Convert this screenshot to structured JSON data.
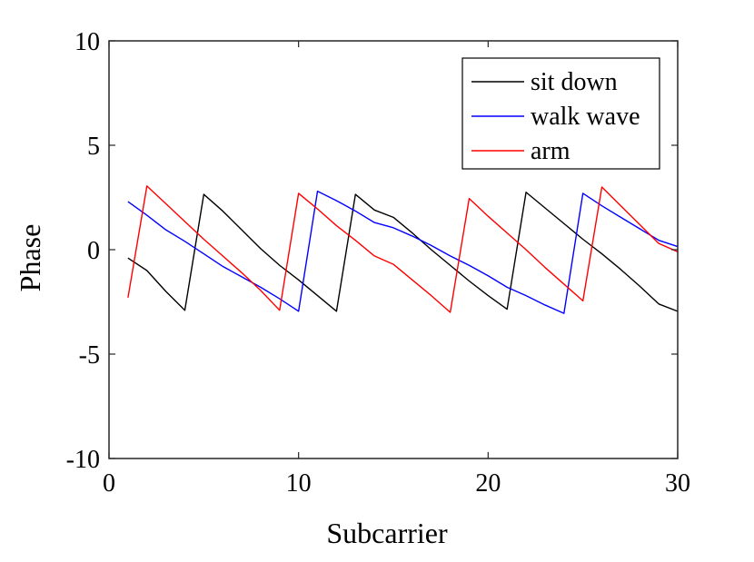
{
  "chart_data": {
    "type": "line",
    "title": "",
    "xlabel": "Subcarrier",
    "ylabel": "Phase",
    "xlim": [
      0,
      30
    ],
    "ylim": [
      -10,
      10
    ],
    "xticks": [
      0,
      10,
      20,
      30
    ],
    "yticks": [
      -10,
      -5,
      0,
      5,
      10
    ],
    "xtick_labels": [
      "0",
      "10",
      "20",
      "30"
    ],
    "ytick_labels": [
      "-10",
      "-5",
      "0",
      "5",
      "10"
    ],
    "grid": false,
    "legend_position": "top-right",
    "x": [
      1,
      2,
      3,
      4,
      5,
      6,
      7,
      8,
      9,
      10,
      11,
      12,
      13,
      14,
      15,
      16,
      17,
      18,
      19,
      20,
      21,
      22,
      23,
      24,
      25,
      26,
      27,
      28,
      29,
      30
    ],
    "series": [
      {
        "name": "sit down",
        "color": "#000000",
        "values": [
          -0.4,
          -1.0,
          -2.0,
          -2.9,
          2.65,
          1.85,
          0.95,
          0.05,
          -0.75,
          -1.45,
          -2.2,
          -2.95,
          2.65,
          1.9,
          1.55,
          0.8,
          0.0,
          -0.75,
          -1.5,
          -2.2,
          -2.85,
          2.75,
          2.0,
          1.25,
          0.5,
          -0.2,
          -0.95,
          -1.75,
          -2.6,
          -2.95
        ]
      },
      {
        "name": "walk wave",
        "color": "#0000ff",
        "values": [
          2.3,
          1.65,
          0.95,
          0.4,
          -0.2,
          -0.8,
          -1.3,
          -1.8,
          -2.35,
          -2.95,
          2.8,
          2.35,
          1.85,
          1.3,
          1.05,
          0.65,
          0.2,
          -0.3,
          -0.75,
          -1.25,
          -1.8,
          -2.2,
          -2.65,
          -3.05,
          2.7,
          2.1,
          1.55,
          1.0,
          0.45,
          0.15
        ]
      },
      {
        "name": "arm",
        "color": "#ff0000",
        "values": [
          -2.3,
          3.05,
          2.2,
          1.35,
          0.5,
          -0.3,
          -1.1,
          -1.95,
          -2.9,
          2.7,
          1.95,
          1.15,
          0.45,
          -0.3,
          -0.7,
          -1.45,
          -2.2,
          -3.0,
          2.45,
          1.6,
          0.8,
          0.0,
          -0.85,
          -1.65,
          -2.45,
          3.0,
          2.1,
          1.2,
          0.3,
          -0.1
        ]
      }
    ]
  }
}
